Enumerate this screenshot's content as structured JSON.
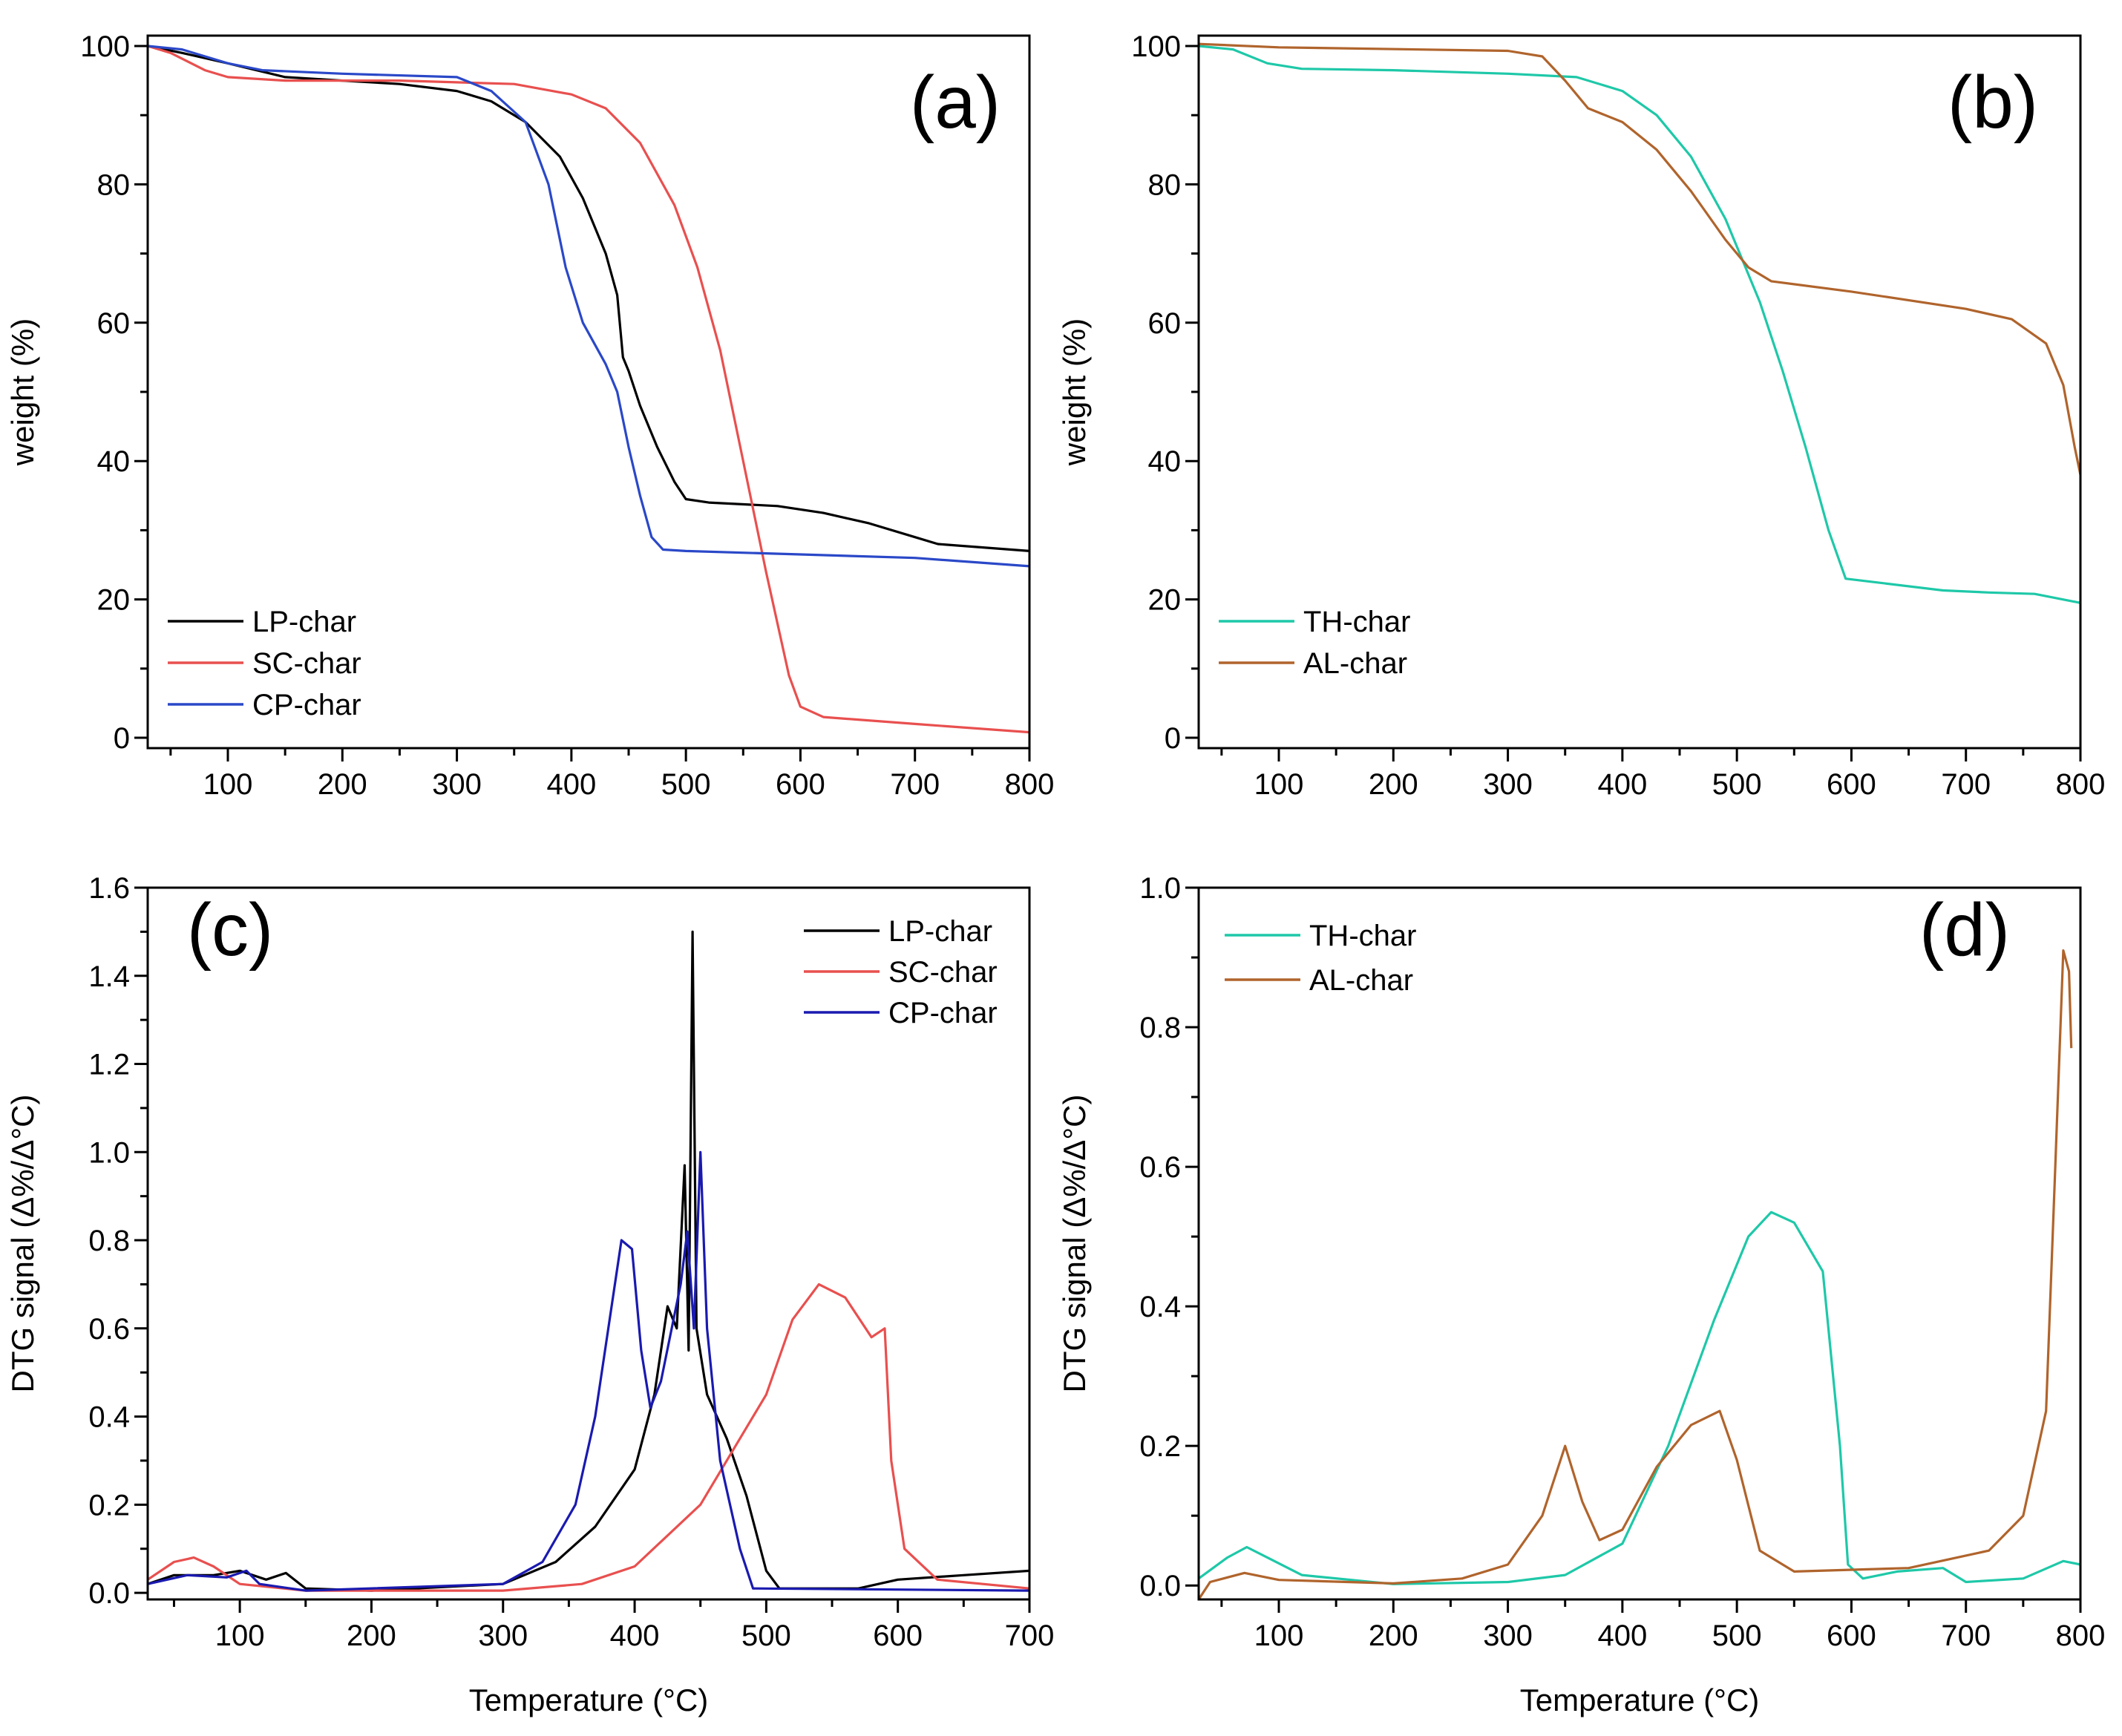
{
  "chart_data": [
    {
      "id": "a",
      "type": "line",
      "panel_label": "(a)",
      "xlabel": "",
      "ylabel": "weight (%)",
      "xlim": [
        30,
        800
      ],
      "ylim": [
        -1.5,
        101.5
      ],
      "xticks": [
        100,
        200,
        300,
        400,
        500,
        600,
        700,
        800
      ],
      "xminor": 50,
      "yticks": [
        0,
        20,
        40,
        60,
        80,
        100
      ],
      "yminor": 10,
      "ytick_decimals": 0,
      "legend_position": "bottom-left",
      "grid": false,
      "series": [
        {
          "name": "LP-char",
          "color": "#000000",
          "points": [
            [
              30,
              100
            ],
            [
              60,
              99
            ],
            [
              100,
              97.5
            ],
            [
              150,
              95.5
            ],
            [
              200,
              95
            ],
            [
              250,
              94.5
            ],
            [
              300,
              93.5
            ],
            [
              330,
              92
            ],
            [
              360,
              89
            ],
            [
              390,
              84
            ],
            [
              410,
              78
            ],
            [
              430,
              70
            ],
            [
              440,
              64
            ],
            [
              445,
              55
            ],
            [
              450,
              53
            ],
            [
              460,
              48
            ],
            [
              475,
              42
            ],
            [
              490,
              37
            ],
            [
              500,
              34.5
            ],
            [
              520,
              34
            ],
            [
              580,
              33.5
            ],
            [
              620,
              32.5
            ],
            [
              660,
              31
            ],
            [
              700,
              29
            ],
            [
              720,
              28
            ],
            [
              800,
              27
            ]
          ]
        },
        {
          "name": "SC-char",
          "color": "#e8504f",
          "points": [
            [
              30,
              100
            ],
            [
              50,
              99
            ],
            [
              80,
              96.5
            ],
            [
              100,
              95.5
            ],
            [
              150,
              95
            ],
            [
              250,
              95
            ],
            [
              350,
              94.5
            ],
            [
              400,
              93
            ],
            [
              430,
              91
            ],
            [
              460,
              86
            ],
            [
              490,
              77
            ],
            [
              510,
              68
            ],
            [
              530,
              56
            ],
            [
              550,
              40
            ],
            [
              570,
              24
            ],
            [
              590,
              9
            ],
            [
              600,
              4.5
            ],
            [
              620,
              3
            ],
            [
              700,
              2
            ],
            [
              800,
              0.8
            ]
          ]
        },
        {
          "name": "CP-char",
          "color": "#2a48c8",
          "points": [
            [
              30,
              100
            ],
            [
              60,
              99.5
            ],
            [
              100,
              97.5
            ],
            [
              130,
              96.5
            ],
            [
              200,
              96
            ],
            [
              300,
              95.5
            ],
            [
              330,
              93.5
            ],
            [
              360,
              89
            ],
            [
              380,
              80
            ],
            [
              395,
              68
            ],
            [
              410,
              60
            ],
            [
              430,
              54
            ],
            [
              440,
              50
            ],
            [
              450,
              42
            ],
            [
              460,
              35
            ],
            [
              470,
              29
            ],
            [
              480,
              27.2
            ],
            [
              500,
              27
            ],
            [
              600,
              26.5
            ],
            [
              700,
              26
            ],
            [
              800,
              24.8
            ]
          ]
        }
      ]
    },
    {
      "id": "b",
      "type": "line",
      "panel_label": "(b)",
      "xlabel": "",
      "ylabel": "weight (%)",
      "xlim": [
        30,
        800
      ],
      "ylim": [
        -1.5,
        101.5
      ],
      "xticks": [
        100,
        200,
        300,
        400,
        500,
        600,
        700,
        800
      ],
      "xminor": 50,
      "yticks": [
        0,
        20,
        40,
        60,
        80,
        100
      ],
      "yminor": 10,
      "ytick_decimals": 0,
      "legend_position": "bottom-left",
      "grid": false,
      "series": [
        {
          "name": "TH-char",
          "color": "#1ec8a8",
          "points": [
            [
              30,
              100
            ],
            [
              60,
              99.5
            ],
            [
              90,
              97.5
            ],
            [
              120,
              96.7
            ],
            [
              200,
              96.5
            ],
            [
              300,
              96
            ],
            [
              360,
              95.5
            ],
            [
              400,
              93.5
            ],
            [
              430,
              90
            ],
            [
              460,
              84
            ],
            [
              490,
              75
            ],
            [
              520,
              63
            ],
            [
              540,
              53
            ],
            [
              560,
              42
            ],
            [
              580,
              30
            ],
            [
              595,
              23
            ],
            [
              620,
              22.5
            ],
            [
              680,
              21.3
            ],
            [
              720,
              21
            ],
            [
              760,
              20.8
            ],
            [
              800,
              19.5
            ]
          ]
        },
        {
          "name": "AL-char",
          "color": "#b0642c",
          "points": [
            [
              30,
              100.3
            ],
            [
              100,
              99.8
            ],
            [
              300,
              99.3
            ],
            [
              330,
              98.5
            ],
            [
              350,
              95
            ],
            [
              370,
              91
            ],
            [
              400,
              89
            ],
            [
              430,
              85
            ],
            [
              460,
              79
            ],
            [
              490,
              72
            ],
            [
              510,
              68
            ],
            [
              530,
              66
            ],
            [
              600,
              64.5
            ],
            [
              700,
              62
            ],
            [
              740,
              60.5
            ],
            [
              770,
              57
            ],
            [
              785,
              51
            ],
            [
              795,
              42
            ],
            [
              800,
              38
            ]
          ]
        }
      ]
    },
    {
      "id": "c",
      "type": "line",
      "panel_label": "(c)",
      "xlabel": "Temperature (°C)",
      "ylabel": "DTG signal (Δ%/Δ°C)",
      "xlim": [
        30,
        700
      ],
      "ylim": [
        -0.015,
        1.6
      ],
      "xticks": [
        100,
        200,
        300,
        400,
        500,
        600,
        700
      ],
      "xminor": 50,
      "yticks": [
        0,
        0.2,
        0.4,
        0.6,
        0.8,
        1.0,
        1.2,
        1.4,
        1.6
      ],
      "yminor": 0.1,
      "ytick_decimals": 1,
      "legend_position": "top-right",
      "grid": false,
      "series": [
        {
          "name": "LP-char",
          "color": "#000000",
          "points": [
            [
              30,
              0.02
            ],
            [
              50,
              0.04
            ],
            [
              80,
              0.04
            ],
            [
              100,
              0.05
            ],
            [
              120,
              0.03
            ],
            [
              135,
              0.045
            ],
            [
              150,
              0.01
            ],
            [
              200,
              0.005
            ],
            [
              300,
              0.02
            ],
            [
              340,
              0.07
            ],
            [
              370,
              0.15
            ],
            [
              400,
              0.28
            ],
            [
              415,
              0.45
            ],
            [
              425,
              0.65
            ],
            [
              432,
              0.6
            ],
            [
              438,
              0.97
            ],
            [
              441,
              0.55
            ],
            [
              444,
              1.5
            ],
            [
              447,
              0.6
            ],
            [
              455,
              0.45
            ],
            [
              470,
              0.35
            ],
            [
              485,
              0.22
            ],
            [
              500,
              0.05
            ],
            [
              510,
              0.01
            ],
            [
              570,
              0.01
            ],
            [
              600,
              0.03
            ],
            [
              650,
              0.04
            ],
            [
              700,
              0.05
            ]
          ]
        },
        {
          "name": "SC-char",
          "color": "#e8504f",
          "points": [
            [
              30,
              0.03
            ],
            [
              50,
              0.07
            ],
            [
              65,
              0.08
            ],
            [
              80,
              0.06
            ],
            [
              100,
              0.02
            ],
            [
              150,
              0.005
            ],
            [
              300,
              0.005
            ],
            [
              360,
              0.02
            ],
            [
              400,
              0.06
            ],
            [
              450,
              0.2
            ],
            [
              500,
              0.45
            ],
            [
              520,
              0.62
            ],
            [
              540,
              0.7
            ],
            [
              560,
              0.67
            ],
            [
              580,
              0.58
            ],
            [
              590,
              0.6
            ],
            [
              595,
              0.3
            ],
            [
              605,
              0.1
            ],
            [
              630,
              0.03
            ],
            [
              700,
              0.01
            ]
          ]
        },
        {
          "name": "CP-char",
          "color": "#1a1ab0",
          "points": [
            [
              30,
              0.02
            ],
            [
              60,
              0.04
            ],
            [
              90,
              0.035
            ],
            [
              105,
              0.05
            ],
            [
              115,
              0.02
            ],
            [
              150,
              0.005
            ],
            [
              300,
              0.02
            ],
            [
              330,
              0.07
            ],
            [
              355,
              0.2
            ],
            [
              370,
              0.4
            ],
            [
              380,
              0.6
            ],
            [
              390,
              0.8
            ],
            [
              398,
              0.78
            ],
            [
              405,
              0.55
            ],
            [
              412,
              0.42
            ],
            [
              420,
              0.48
            ],
            [
              435,
              0.7
            ],
            [
              440,
              0.82
            ],
            [
              445,
              0.6
            ],
            [
              450,
              1.0
            ],
            [
              455,
              0.6
            ],
            [
              465,
              0.3
            ],
            [
              480,
              0.1
            ],
            [
              490,
              0.01
            ],
            [
              700,
              0.005
            ]
          ]
        }
      ]
    },
    {
      "id": "d",
      "type": "line",
      "panel_label": "(d)",
      "xlabel": "Temperature (°C)",
      "ylabel": "DTG signal (Δ%/Δ°C)",
      "xlim": [
        30,
        800
      ],
      "ylim": [
        -0.02,
        1.0
      ],
      "xticks": [
        100,
        200,
        300,
        400,
        500,
        600,
        700,
        800
      ],
      "xminor": 50,
      "yticks": [
        0,
        0.2,
        0.4,
        0.6,
        0.8,
        1.0
      ],
      "yminor": 0.1,
      "ytick_decimals": 1,
      "legend_position": "top-left",
      "grid": false,
      "series": [
        {
          "name": "TH-char",
          "color": "#1ec8a8",
          "points": [
            [
              30,
              0.01
            ],
            [
              55,
              0.04
            ],
            [
              72,
              0.055
            ],
            [
              90,
              0.04
            ],
            [
              120,
              0.015
            ],
            [
              200,
              0.002
            ],
            [
              300,
              0.005
            ],
            [
              350,
              0.015
            ],
            [
              400,
              0.06
            ],
            [
              440,
              0.2
            ],
            [
              480,
              0.38
            ],
            [
              510,
              0.5
            ],
            [
              530,
              0.535
            ],
            [
              550,
              0.52
            ],
            [
              575,
              0.45
            ],
            [
              590,
              0.2
            ],
            [
              597,
              0.03
            ],
            [
              610,
              0.01
            ],
            [
              640,
              0.02
            ],
            [
              680,
              0.025
            ],
            [
              700,
              0.005
            ],
            [
              750,
              0.01
            ],
            [
              785,
              0.035
            ],
            [
              800,
              0.03
            ]
          ]
        },
        {
          "name": "AL-char",
          "color": "#b0642c",
          "points": [
            [
              30,
              -0.02
            ],
            [
              40,
              0.005
            ],
            [
              70,
              0.018
            ],
            [
              100,
              0.008
            ],
            [
              200,
              0.003
            ],
            [
              260,
              0.01
            ],
            [
              300,
              0.03
            ],
            [
              330,
              0.1
            ],
            [
              350,
              0.2
            ],
            [
              365,
              0.12
            ],
            [
              380,
              0.065
            ],
            [
              400,
              0.08
            ],
            [
              430,
              0.17
            ],
            [
              460,
              0.23
            ],
            [
              485,
              0.25
            ],
            [
              500,
              0.18
            ],
            [
              520,
              0.05
            ],
            [
              550,
              0.02
            ],
            [
              650,
              0.025
            ],
            [
              720,
              0.05
            ],
            [
              750,
              0.1
            ],
            [
              770,
              0.25
            ],
            [
              778,
              0.6
            ],
            [
              785,
              0.91
            ],
            [
              790,
              0.88
            ],
            [
              792,
              0.77
            ]
          ]
        }
      ]
    }
  ]
}
